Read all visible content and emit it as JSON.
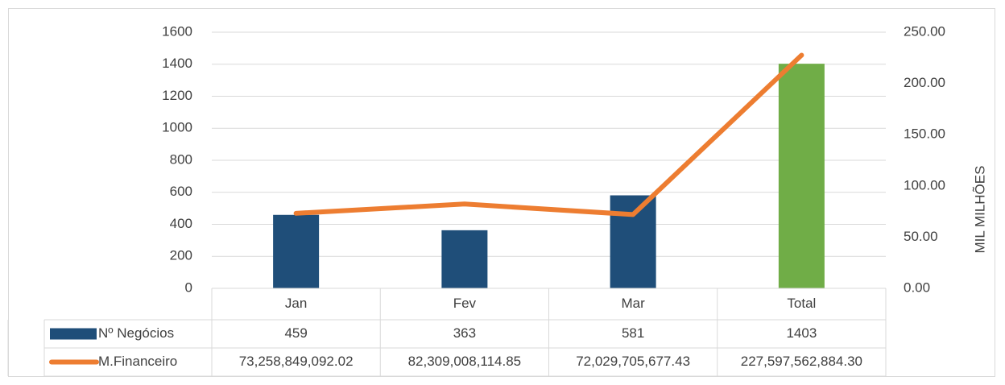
{
  "chart_data": {
    "type": "bar",
    "categories": [
      "Jan",
      "Fev",
      "Mar",
      "Total"
    ],
    "series": [
      {
        "name": "Nº Negócios",
        "type": "bar",
        "color": "#1f4e79",
        "point_colors": [
          "#1f4e79",
          "#1f4e79",
          "#1f4e79",
          "#70ad47"
        ],
        "values": [
          459,
          363,
          581,
          1403
        ]
      },
      {
        "name": "M.Financeiro",
        "type": "line",
        "axis": "y2",
        "color": "#ed7d31",
        "values": [
          73.25884909202,
          82.30900811485,
          72.02970567743,
          227.5975628843
        ],
        "value_labels": [
          "73,258,849,092.02",
          "82,309,008,114.85",
          "72,029,705,677.43",
          "227,597,562,884.30"
        ]
      }
    ],
    "ylim": [
      0,
      1600
    ],
    "yticks": [
      0,
      200,
      400,
      600,
      800,
      1000,
      1200,
      1400,
      1600
    ],
    "y2lim": [
      0,
      250
    ],
    "y2ticks": [
      {
        "value": 0,
        "label": "0.00"
      },
      {
        "value": 50,
        "label": "50.00"
      },
      {
        "value": 100,
        "label": "100.00"
      },
      {
        "value": 150,
        "label": "150.00"
      },
      {
        "value": 200,
        "label": "200.00"
      },
      {
        "value": 250,
        "label": "250.00"
      }
    ],
    "y2label": "MIL MILHÕES",
    "grid": true,
    "data_table": true
  }
}
